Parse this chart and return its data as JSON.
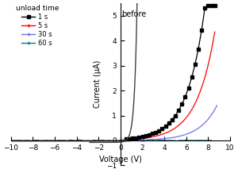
{
  "title": "",
  "xlabel": "Voltage (V)",
  "ylabel": "Current (μA)",
  "xlim": [
    -10,
    10
  ],
  "ylim": [
    -1,
    5.5
  ],
  "xticks": [
    -10,
    -8,
    -6,
    -4,
    -2,
    0,
    2,
    4,
    6,
    8,
    10
  ],
  "yticks": [
    -1,
    0,
    1,
    2,
    3,
    4,
    5
  ],
  "legend_title": "unload time",
  "legend_entries": [
    "1 s",
    "5 s",
    "30 s",
    "60 s"
  ],
  "series_colors": [
    "black",
    "red",
    "#7070ee",
    "#008080"
  ],
  "before_color": "#404040",
  "background": "#ffffff",
  "annotation_before": "before"
}
